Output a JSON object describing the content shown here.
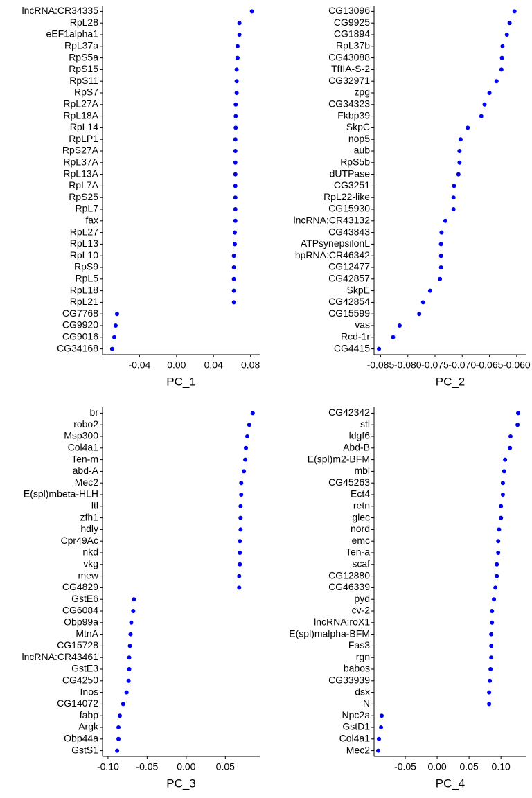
{
  "chart_data": [
    {
      "type": "dot",
      "xlabel": "PC_1",
      "color": "#0000ee",
      "categories": [
        "lncRNA:CR34335",
        "RpL28",
        "eEF1alpha1",
        "RpL37a",
        "RpS5a",
        "RpS15",
        "RpS11",
        "RpS7",
        "RpL27A",
        "RpL18A",
        "RpL14",
        "RpLP1",
        "RpS27A",
        "RpL37A",
        "RpL13A",
        "RpL7A",
        "RpS25",
        "RpL7",
        "fax",
        "RpL27",
        "RpL13",
        "RpL10",
        "RpS9",
        "RpL5",
        "RpL18",
        "RpL21",
        "CG7768",
        "CG9920",
        "CG9016",
        "CG34168"
      ],
      "values": [
        0.0815,
        0.068,
        0.068,
        0.066,
        0.066,
        0.065,
        0.065,
        0.065,
        0.064,
        0.064,
        0.064,
        0.0636,
        0.0636,
        0.0636,
        0.0636,
        0.0636,
        0.0636,
        0.0636,
        0.0636,
        0.063,
        0.063,
        0.062,
        0.062,
        0.062,
        0.062,
        0.062,
        -0.0643,
        -0.0658,
        -0.0673,
        -0.0696
      ],
      "xlim": [
        -0.08,
        0.09
      ],
      "xticks": [
        -0.04,
        {
          "value": 0,
          "label": "0.00"
        },
        0.04,
        0.08
      ]
    },
    {
      "type": "dot",
      "xlabel": "PC_2",
      "color": "#0000ee",
      "categories": [
        "CG13096",
        "CG9925",
        "CG1894",
        "RpL37b",
        "CG43088",
        "TfIIA-S-2",
        "CG32971",
        "zpg",
        "CG34323",
        "Fkbp39",
        "SkpC",
        "nop5",
        "aub",
        "RpS5b",
        "dUTPase",
        "CG3251",
        "RpL22-like",
        "CG15930",
        "lncRNA:CR43132",
        "CG43843",
        "ATPsynepsilonL",
        "hpRNA:CR46342",
        "CG12477",
        "CG42857",
        "SkpE",
        "CG42854",
        "CG15599",
        "vas",
        "Rcd-1r",
        "CG4415"
      ],
      "values": [
        -0.0604,
        -0.0613,
        -0.0618,
        -0.0626,
        -0.0627,
        -0.0628,
        -0.0637,
        -0.065,
        -0.0659,
        -0.0665,
        -0.069,
        -0.0703,
        -0.0705,
        -0.0705,
        -0.0707,
        -0.0715,
        -0.0716,
        -0.0716,
        -0.0731,
        -0.0738,
        -0.0739,
        -0.0739,
        -0.0739,
        -0.0741,
        -0.0759,
        -0.0772,
        -0.0779,
        -0.0815,
        -0.0827,
        -0.0853
      ],
      "xlim": [
        -0.0862,
        -0.0582
      ],
      "xticks": [
        -0.085,
        {
          "value": -0.08,
          "label": "-0.080"
        },
        -0.075,
        {
          "value": -0.07,
          "label": "-0.070"
        },
        -0.065,
        {
          "value": -0.06,
          "label": "-0.060"
        }
      ]
    },
    {
      "type": "dot",
      "xlabel": "PC_3",
      "color": "#0000ee",
      "categories": [
        "br",
        "robo2",
        "Msp300",
        "Col4a1",
        "Ten-m",
        "abd-A",
        "Mec2",
        "E(spl)mbeta-HLH",
        "ltl",
        "zfh1",
        "hdly",
        "Cpr49Ac",
        "nkd",
        "vkg",
        "mew",
        "CG4829",
        "GstE6",
        "CG6084",
        "Obp99a",
        "MtnA",
        "CG15728",
        "lncRNA:CR43461",
        "GstE3",
        "CG4250",
        "Inos",
        "CG14072",
        "fabp",
        "Argk",
        "Obp44a",
        "GstS1"
      ],
      "values": [
        0.085,
        0.0806,
        0.078,
        0.0763,
        0.0755,
        0.0737,
        0.0703,
        0.0703,
        0.0695,
        0.0695,
        0.0695,
        0.0686,
        0.0686,
        0.0686,
        0.0677,
        0.0677,
        -0.0669,
        -0.0677,
        -0.0703,
        -0.0712,
        -0.072,
        -0.0729,
        -0.0729,
        -0.0737,
        -0.0763,
        -0.0806,
        -0.0849,
        -0.0866,
        -0.0866,
        -0.0883
      ],
      "xlim": [
        -0.107,
        0.094
      ],
      "xticks": [
        {
          "value": -0.1,
          "label": "-0.10"
        },
        -0.05,
        {
          "value": 0,
          "label": "0.00"
        },
        0.05
      ]
    },
    {
      "type": "dot",
      "xlabel": "PC_4",
      "color": "#0000ee",
      "categories": [
        "CG42342",
        "stl",
        "ldgf6",
        "Abd-B",
        "E(spl)m2-BFM",
        "mbl",
        "CG45263",
        "Ect4",
        "retn",
        "glec",
        "nord",
        "emc",
        "Ten-a",
        "scaf",
        "CG12880",
        "CG46339",
        "pyd",
        "cv-2",
        "lncRNA:roX1",
        "E(spl)malpha-BFM",
        "Fas3",
        "rgn",
        "babos",
        "CG33939",
        "dsx",
        "N",
        "Npc2a",
        "GstD1",
        "Col4a1",
        "Mec2"
      ],
      "values": [
        0.127,
        0.126,
        0.115,
        0.114,
        0.1065,
        0.105,
        0.103,
        0.103,
        0.1,
        0.1,
        0.097,
        0.0957,
        0.0957,
        0.0935,
        0.0935,
        0.0913,
        0.089,
        0.0859,
        0.0859,
        0.0848,
        0.0848,
        0.0848,
        0.0837,
        0.0826,
        0.0815,
        0.0815,
        -0.087,
        -0.088,
        -0.0913,
        -0.0924
      ],
      "xlim": [
        -0.0989,
        0.14
      ],
      "xticks": [
        -0.05,
        {
          "value": 0,
          "label": "0.00"
        },
        0.05,
        {
          "value": 0.1,
          "label": "0.10"
        }
      ]
    }
  ]
}
